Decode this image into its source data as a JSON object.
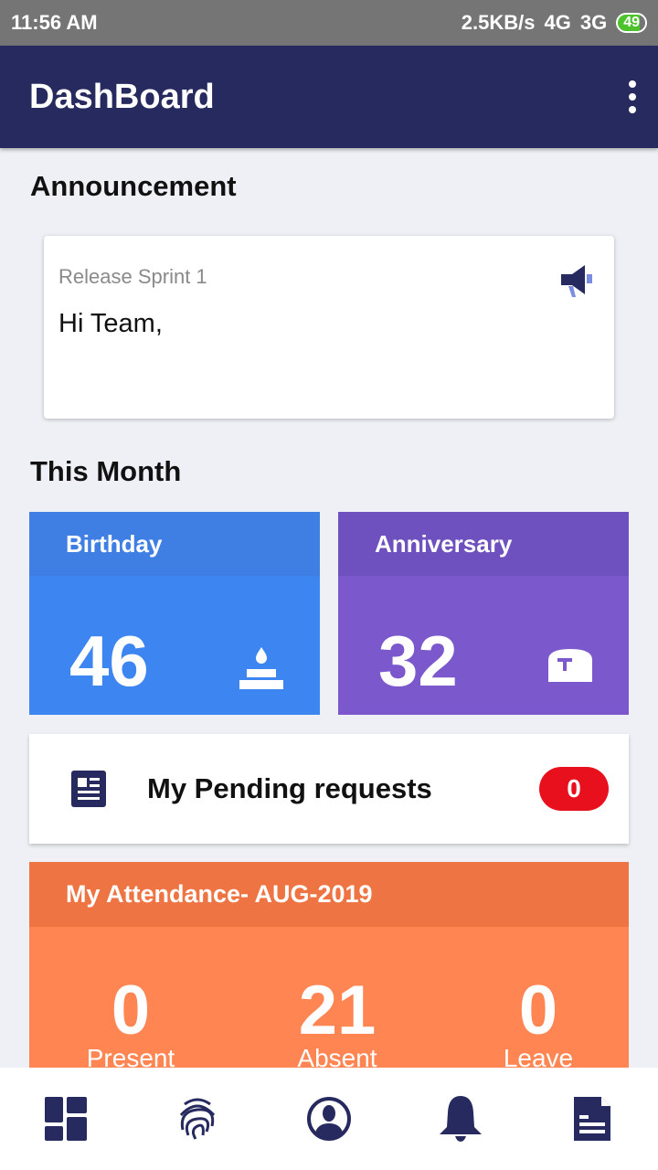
{
  "status": {
    "time": "11:56 AM",
    "speed": "2.5KB/s",
    "net1": "4G",
    "net2": "3G",
    "battery": "49"
  },
  "appbar": {
    "title": "DashBoard"
  },
  "announcement": {
    "heading": "Announcement",
    "title": "Release Sprint 1",
    "body": "Hi Team,"
  },
  "this_month": {
    "heading": "This Month",
    "birthday": {
      "label": "Birthday",
      "count": "46"
    },
    "anniversary": {
      "label": "Anniversary",
      "count": "32"
    }
  },
  "pending": {
    "label": "My Pending requests",
    "count": "0"
  },
  "attendance": {
    "title": "My Attendance- AUG-2019",
    "stats": [
      {
        "value": "0",
        "label": "Present"
      },
      {
        "value": "21",
        "label": "Absent"
      },
      {
        "value": "0",
        "label": "Leave"
      }
    ]
  },
  "colors": {
    "primary": "#262a5e",
    "birthday": "#3d85f0",
    "anniversary": "#7b59cc",
    "attendance": "#ff8552",
    "badge": "#e8101d"
  },
  "nav": [
    "dashboard-icon",
    "fingerprint-icon",
    "profile-icon",
    "bell-icon",
    "document-icon"
  ]
}
